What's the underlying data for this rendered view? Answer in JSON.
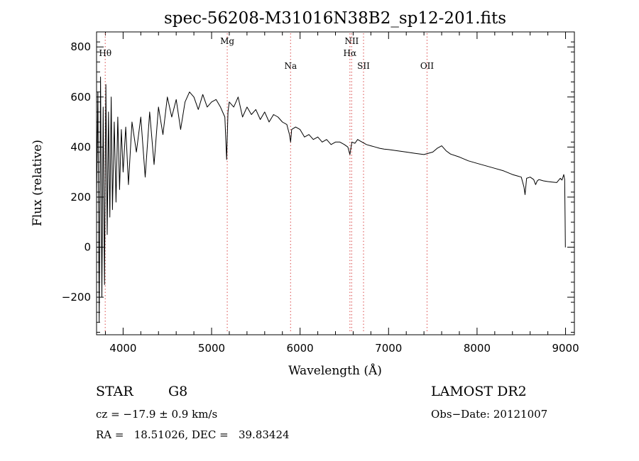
{
  "chart_data": {
    "type": "line",
    "title": "spec-56208-M31016N38B2_sp12-201.fits",
    "xlabel": "Wavelength (Å)",
    "ylabel": "Flux (relative)",
    "xlim": [
      3700,
      9100
    ],
    "ylim": [
      -350,
      860
    ],
    "xticks": [
      4000,
      5000,
      6000,
      7000,
      8000,
      9000
    ],
    "yticks": [
      -200,
      0,
      200,
      400,
      600,
      800
    ],
    "grid": false,
    "line_color": "#000000",
    "marker_color": "#e06666",
    "lines": [
      {
        "label": "Hθ",
        "x": 3798,
        "label_row": 1
      },
      {
        "label": "Mg",
        "x": 5177,
        "label_row": 0
      },
      {
        "label": "Na",
        "x": 5893,
        "label_row": 2
      },
      {
        "label": "NII",
        "x": 6583,
        "label_row": 0
      },
      {
        "label": "Hα",
        "x": 6563,
        "label_row": 1
      },
      {
        "label": "SII",
        "x": 6717,
        "label_row": 2
      },
      {
        "label": "OII",
        "x": 7435,
        "label_row": 2
      }
    ],
    "series": [
      {
        "x": [
          3700,
          3715,
          3730,
          3745,
          3760,
          3775,
          3790,
          3805,
          3820,
          3835,
          3850,
          3865,
          3880,
          3900,
          3920,
          3940,
          3960,
          3980,
          4000,
          4030,
          4060,
          4100,
          4150,
          4200,
          4250,
          4300,
          4350,
          4400,
          4450,
          4500,
          4550,
          4600,
          4650,
          4700,
          4750,
          4800,
          4850,
          4900,
          4950,
          5000,
          5050,
          5100,
          5150,
          5170,
          5185,
          5200,
          5250,
          5300,
          5350,
          5400,
          5450,
          5500,
          5550,
          5600,
          5650,
          5700,
          5750,
          5800,
          5850,
          5880,
          5893,
          5905,
          5950,
          6000,
          6050,
          6100,
          6150,
          6200,
          6250,
          6300,
          6350,
          6400,
          6450,
          6500,
          6540,
          6563,
          6585,
          6620,
          6650,
          6700,
          6750,
          6800,
          6850,
          6900,
          6950,
          7000,
          7100,
          7200,
          7300,
          7400,
          7500,
          7550,
          7600,
          7650,
          7700,
          7800,
          7900,
          8000,
          8100,
          8200,
          8300,
          8400,
          8450,
          8500,
          8530,
          8542,
          8560,
          8600,
          8640,
          8662,
          8680,
          8700,
          8750,
          8800,
          8850,
          8900,
          8940,
          8960,
          8980,
          8990,
          8995,
          8998,
          9000
        ],
        "y": [
          200,
          620,
          -300,
          680,
          -200,
          560,
          -150,
          650,
          50,
          540,
          120,
          600,
          150,
          500,
          180,
          520,
          230,
          470,
          300,
          480,
          250,
          500,
          380,
          520,
          280,
          540,
          330,
          560,
          450,
          600,
          520,
          590,
          470,
          580,
          620,
          600,
          550,
          610,
          560,
          580,
          590,
          560,
          520,
          350,
          540,
          580,
          560,
          600,
          520,
          560,
          530,
          550,
          510,
          540,
          500,
          530,
          520,
          500,
          490,
          450,
          420,
          470,
          480,
          470,
          440,
          450,
          430,
          440,
          420,
          430,
          410,
          420,
          420,
          410,
          400,
          370,
          420,
          415,
          430,
          420,
          410,
          405,
          400,
          395,
          392,
          390,
          385,
          380,
          375,
          370,
          380,
          395,
          405,
          385,
          372,
          360,
          345,
          335,
          325,
          315,
          305,
          290,
          285,
          280,
          240,
          210,
          275,
          280,
          270,
          250,
          265,
          270,
          265,
          262,
          260,
          258,
          275,
          268,
          290,
          270,
          120,
          0,
          0
        ]
      }
    ],
    "annotations": {
      "star_label": "STAR",
      "class_label": "G8",
      "survey": "LAMOST DR2",
      "cz": "cz = −17.9 ± 0.9 km/s",
      "obs_date": "Obs−Date: 20121007",
      "radec": "RA =   18.51026, DEC =   39.83424"
    }
  }
}
